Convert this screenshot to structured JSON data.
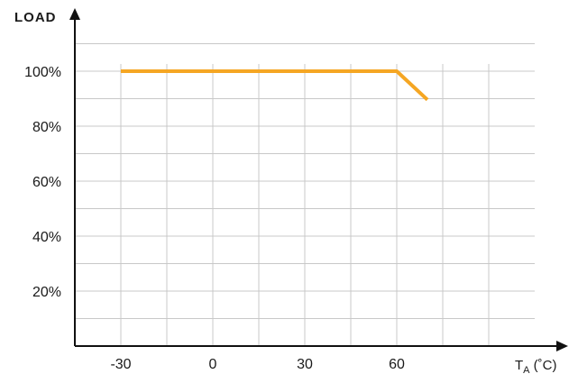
{
  "chart_data": {
    "type": "line",
    "ylabel": "LOAD",
    "xlabel": "TA (°C)",
    "xlabel_main": "T",
    "xlabel_sub": "A",
    "xlabel_unit": " (˚C)",
    "x_ticks": [
      "-30",
      "0",
      "30",
      "60"
    ],
    "y_ticks": [
      "20%",
      "40%",
      "60%",
      "80%",
      "100%"
    ],
    "x_tick_values": [
      -30,
      0,
      30,
      60
    ],
    "y_tick_values": [
      20,
      40,
      60,
      80,
      100
    ],
    "xlim": [
      -45,
      105
    ],
    "ylim": [
      0,
      120
    ],
    "grid": true,
    "series": [
      {
        "color": "#F5A623",
        "x": [
          -30,
          60,
          70
        ],
        "y": [
          100,
          100,
          89.6
        ]
      }
    ]
  }
}
